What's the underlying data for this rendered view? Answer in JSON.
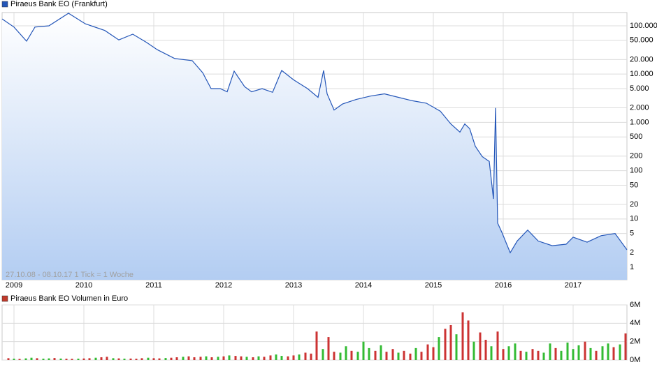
{
  "chart_data": [
    {
      "type": "line",
      "yscale": "log",
      "grid": true,
      "legend": "top-left",
      "annotation": "27.10.08 - 08.10.17   1 Tick = 1 Woche",
      "series": [
        {
          "name": "Piraeus Bank EO (Frankfurt)",
          "color": "#2456b8",
          "x": [
            2008.83,
            2009.0,
            2009.18,
            2009.3,
            2009.5,
            2009.78,
            2010.02,
            2010.3,
            2010.5,
            2010.7,
            2010.9,
            2011.05,
            2011.3,
            2011.55,
            2011.7,
            2011.82,
            2011.95,
            2012.05,
            2012.15,
            2012.3,
            2012.4,
            2012.55,
            2012.7,
            2012.83,
            2013.0,
            2013.2,
            2013.35,
            2013.43,
            2013.48,
            2013.58,
            2013.7,
            2013.9,
            2014.1,
            2014.3,
            2014.5,
            2014.7,
            2014.9,
            2015.1,
            2015.25,
            2015.38,
            2015.45,
            2015.52,
            2015.6,
            2015.7,
            2015.8,
            2015.86,
            2015.89,
            2015.92,
            2015.98,
            2016.1,
            2016.2,
            2016.35,
            2016.5,
            2016.7,
            2016.9,
            2017.0,
            2017.2,
            2017.4,
            2017.6,
            2017.77
          ],
          "values": [
            139000,
            94000,
            48000,
            94000,
            100000,
            182000,
            110000,
            80000,
            51000,
            67000,
            45000,
            32000,
            21000,
            19000,
            10700,
            5000,
            5000,
            4300,
            11500,
            5500,
            4300,
            5000,
            4200,
            11900,
            7600,
            5000,
            3300,
            11900,
            3900,
            1800,
            2400,
            3000,
            3500,
            3900,
            3300,
            2800,
            2500,
            1700,
            930,
            630,
            930,
            740,
            320,
            195,
            155,
            26,
            2000,
            8.2,
            5.3,
            2,
            3.5,
            5.9,
            3.5,
            2.8,
            3,
            4.2,
            3.3,
            4.5,
            5,
            2.3
          ]
        }
      ],
      "xlim": [
        2008.83,
        2017.77
      ],
      "xticks": [
        2009,
        2010,
        2011,
        2012,
        2013,
        2014,
        2015,
        2016,
        2017
      ],
      "ylim": [
        0.55,
        188000
      ],
      "yticks": [
        {
          "value": 100000,
          "label": "100.000"
        },
        {
          "value": 50000,
          "label": "50.000"
        },
        {
          "value": 20000,
          "label": "20.000"
        },
        {
          "value": 10000,
          "label": "10.000"
        },
        {
          "value": 5000,
          "label": "5.000"
        },
        {
          "value": 2000,
          "label": "2.000"
        },
        {
          "value": 1000,
          "label": "1.000"
        },
        500,
        200,
        100,
        50,
        20,
        10,
        5,
        2,
        1
      ]
    },
    {
      "type": "bar",
      "grid": true,
      "legend": "top-left",
      "series": [
        {
          "name": "Piraeus Bank EO Volumen in Euro",
          "color": "#c0392b",
          "x": [
            2008.92,
            2009.0,
            2009.08,
            2009.17,
            2009.25,
            2009.33,
            2009.42,
            2009.5,
            2009.58,
            2009.67,
            2009.75,
            2009.83,
            2009.92,
            2010.0,
            2010.08,
            2010.17,
            2010.25,
            2010.33,
            2010.42,
            2010.5,
            2010.58,
            2010.67,
            2010.75,
            2010.83,
            2010.92,
            2011.0,
            2011.08,
            2011.17,
            2011.25,
            2011.33,
            2011.42,
            2011.5,
            2011.58,
            2011.67,
            2011.75,
            2011.83,
            2011.92,
            2012.0,
            2012.08,
            2012.17,
            2012.25,
            2012.33,
            2012.42,
            2012.5,
            2012.58,
            2012.67,
            2012.75,
            2012.83,
            2012.92,
            2013.0,
            2013.08,
            2013.17,
            2013.25,
            2013.33,
            2013.42,
            2013.5,
            2013.58,
            2013.67,
            2013.75,
            2013.83,
            2013.92,
            2014.0,
            2014.08,
            2014.17,
            2014.25,
            2014.33,
            2014.42,
            2014.5,
            2014.58,
            2014.67,
            2014.75,
            2014.83,
            2014.92,
            2015.0,
            2015.08,
            2015.17,
            2015.25,
            2015.33,
            2015.42,
            2015.5,
            2015.58,
            2015.67,
            2015.75,
            2015.83,
            2015.92,
            2016.0,
            2016.08,
            2016.17,
            2016.25,
            2016.33,
            2016.42,
            2016.5,
            2016.58,
            2016.67,
            2016.75,
            2016.83,
            2016.92,
            2017.0,
            2017.08,
            2017.17,
            2017.25,
            2017.33,
            2017.42,
            2017.5,
            2017.58,
            2017.67,
            2017.75
          ],
          "values": [
            200000,
            150000,
            120000,
            180000,
            250000,
            200000,
            150000,
            180000,
            220000,
            160000,
            140000,
            130000,
            150000,
            170000,
            200000,
            250000,
            300000,
            350000,
            200000,
            180000,
            150000,
            160000,
            140000,
            200000,
            250000,
            200000,
            180000,
            220000,
            250000,
            300000,
            350000,
            400000,
            300000,
            350000,
            400000,
            300000,
            350000,
            400000,
            500000,
            450000,
            400000,
            350000,
            300000,
            400000,
            350000,
            500000,
            600000,
            450000,
            400000,
            500000,
            600000,
            800000,
            700000,
            3100000,
            1200000,
            2500000,
            900000,
            800000,
            1500000,
            1000000,
            900000,
            2000000,
            1300000,
            1000000,
            1600000,
            900000,
            1200000,
            800000,
            1000000,
            700000,
            1300000,
            900000,
            1700000,
            1400000,
            2500000,
            3400000,
            3800000,
            2800000,
            5200000,
            4300000,
            2000000,
            3000000,
            2200000,
            1500000,
            3100000,
            1200000,
            1500000,
            1800000,
            1000000,
            900000,
            1200000,
            1000000,
            800000,
            1800000,
            1300000,
            1000000,
            1900000,
            1200000,
            1600000,
            2000000,
            1300000,
            1000000,
            1500000,
            1800000,
            1400000,
            1700000,
            2900000
          ],
          "colors": [
            "#c33",
            "#3b3",
            "#c33",
            "#3b3",
            "#3b3",
            "#c33",
            "#3b3",
            "#3b3",
            "#c33",
            "#3b3",
            "#c33",
            "#c33",
            "#3b3",
            "#c33",
            "#c33",
            "#3b3",
            "#c33",
            "#c33",
            "#3b3",
            "#c33",
            "#3b3",
            "#c33",
            "#c33",
            "#c33",
            "#3b3",
            "#c33",
            "#c33",
            "#3b3",
            "#c33",
            "#c33",
            "#3b3",
            "#c33",
            "#c33",
            "#c33",
            "#3b3",
            "#c33",
            "#3b3",
            "#c33",
            "#3b3",
            "#c33",
            "#c33",
            "#3b3",
            "#c33",
            "#3b3",
            "#c33",
            "#c33",
            "#3b3",
            "#3b3",
            "#c33",
            "#c33",
            "#3b3",
            "#c33",
            "#c33",
            "#c33",
            "#3b3",
            "#c33",
            "#c33",
            "#3b3",
            "#3b3",
            "#c33",
            "#3b3",
            "#3b3",
            "#3b3",
            "#c33",
            "#3b3",
            "#c33",
            "#c33",
            "#3b3",
            "#c33",
            "#c33",
            "#3b3",
            "#c33",
            "#c33",
            "#c33",
            "#3b3",
            "#c33",
            "#c33",
            "#3b3",
            "#c33",
            "#c33",
            "#3b3",
            "#c33",
            "#c33",
            "#3b3",
            "#c33",
            "#c33",
            "#3b3",
            "#3b3",
            "#c33",
            "#3b3",
            "#c33",
            "#c33",
            "#3b3",
            "#3b3",
            "#c33",
            "#3b3",
            "#3b3",
            "#3b3",
            "#3b3",
            "#c33",
            "#3b3",
            "#c33",
            "#3b3",
            "#3b3",
            "#c33",
            "#3b3",
            "#c33"
          ]
        }
      ],
      "xlim": [
        2008.83,
        2017.77
      ],
      "xticks": [
        2009,
        2010,
        2011,
        2012,
        2013,
        2014,
        2015,
        2016,
        2017
      ],
      "ylim": [
        0,
        6000000
      ],
      "yticks": [
        {
          "value": 0,
          "label": "0M"
        },
        {
          "value": 2000000,
          "label": "2M"
        },
        {
          "value": 4000000,
          "label": "4M"
        },
        {
          "value": 6000000,
          "label": "6M"
        }
      ]
    }
  ]
}
